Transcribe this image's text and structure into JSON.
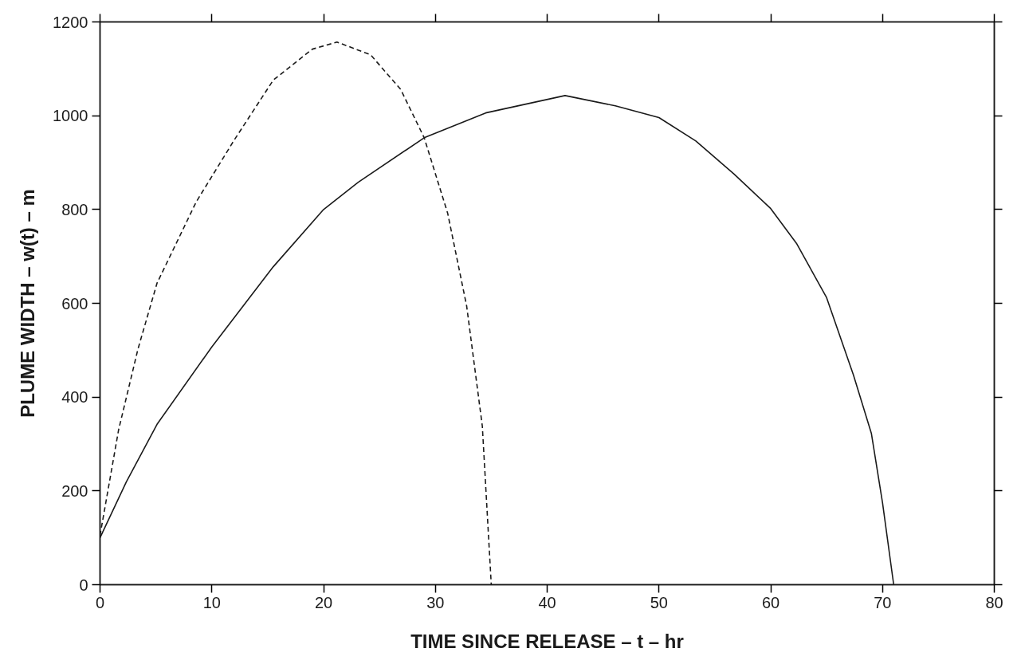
{
  "chart_data": {
    "type": "line",
    "xlabel": "TIME SINCE RELEASE – t – hr",
    "ylabel": "PLUME WIDTH – w(t) – m",
    "xlim": [
      0,
      80
    ],
    "xticks": [
      0,
      10,
      20,
      30,
      40,
      50,
      60,
      70,
      80
    ],
    "ylim": [
      0,
      1200
    ],
    "yticks": [
      0,
      200,
      400,
      600,
      800,
      1000,
      1200
    ],
    "grid": false,
    "marker": "none",
    "series": [
      {
        "color": "#1a1a1a",
        "line_style": "solid",
        "x": [
          0,
          2.35,
          5.1,
          10,
          15.5,
          20,
          23.1,
          29,
          34.5,
          41.6,
          46.1,
          50,
          53.3,
          56.7,
          60,
          62.3,
          65,
          67.4,
          69,
          70,
          71
        ],
        "values": [
          100,
          219,
          342,
          507,
          678,
          800,
          858,
          953,
          1006,
          1043,
          1021,
          996,
          946,
          876,
          802,
          728,
          612,
          447,
          323,
          175,
          0
        ]
      },
      {
        "color": "#1a1a1a",
        "line_style": "dashed",
        "x": [
          0,
          1.66,
          3.4,
          5.1,
          8.6,
          12,
          15.5,
          19,
          21.2,
          24.2,
          26.9,
          29,
          31.1,
          32.8,
          34.2,
          35
        ],
        "values": [
          105,
          330,
          503,
          643,
          816,
          948,
          1076,
          1142,
          1157,
          1130,
          1056,
          953,
          792,
          594,
          338,
          0
        ]
      }
    ]
  }
}
